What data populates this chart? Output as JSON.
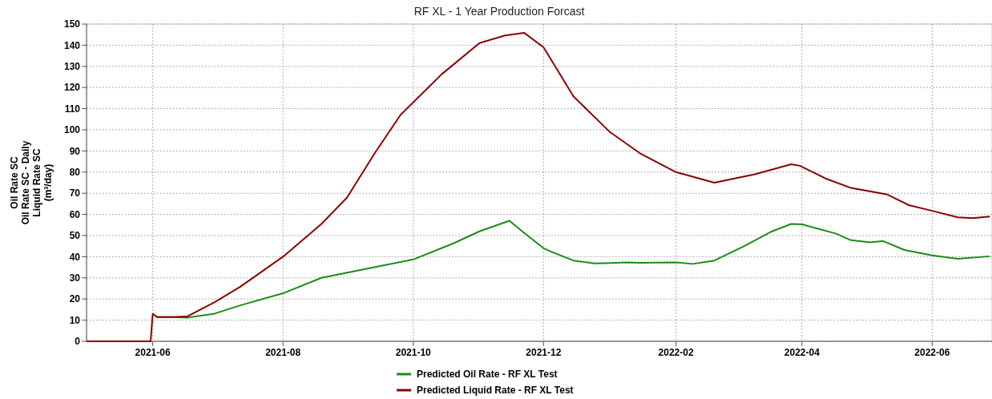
{
  "chart_data": {
    "type": "line",
    "title": "RF XL - 1 Year Production Forcast",
    "ylabel": "Oil Rate SC\nOil Rate SC - Daily\nLiquid Rate SC\n(m³/day)",
    "xlim": [
      "2021-05-01",
      "2022-06-29"
    ],
    "xticks": [
      {
        "value": "2021-06-01",
        "label": "2021-06"
      },
      {
        "value": "2021-08-01",
        "label": "2021-08"
      },
      {
        "value": "2021-10-01",
        "label": "2021-10"
      },
      {
        "value": "2021-12-01",
        "label": "2021-12"
      },
      {
        "value": "2022-02-01",
        "label": "2022-02"
      },
      {
        "value": "2022-04-01",
        "label": "2022-04"
      },
      {
        "value": "2022-06-01",
        "label": "2022-06"
      }
    ],
    "ylim": [
      0,
      150
    ],
    "yticks": [
      0,
      10,
      20,
      30,
      40,
      50,
      60,
      70,
      80,
      90,
      100,
      110,
      120,
      130,
      140,
      150
    ],
    "grid": true,
    "legend": "bottom",
    "marker": "none",
    "line_style": "solid",
    "series": [
      {
        "name": "Predicted Oil Rate - RF XL Test",
        "color": "#1a8c1a",
        "x": [
          "2021-06-03",
          "2021-06-10",
          "2021-06-17",
          "2021-06-30",
          "2021-07-12",
          "2021-08-01",
          "2021-08-19",
          "2021-09-10",
          "2021-10-01",
          "2021-10-20",
          "2021-11-01",
          "2021-11-15",
          "2021-11-21",
          "2021-12-01",
          "2021-12-05",
          "2021-12-15",
          "2021-12-25",
          "2022-01-09",
          "2022-01-15",
          "2022-02-01",
          "2022-02-09",
          "2022-02-19",
          "2022-03-05",
          "2022-03-18",
          "2022-03-27",
          "2022-04-01",
          "2022-04-17",
          "2022-04-24",
          "2022-05-03",
          "2022-05-09",
          "2022-05-19",
          "2022-06-01",
          "2022-06-13",
          "2022-06-28"
        ],
        "values": [
          11.5,
          11.5,
          11.2,
          13.1,
          17,
          22.7,
          30,
          34.5,
          38.7,
          46.4,
          52,
          57,
          52,
          44,
          42.2,
          38.2,
          36.8,
          37.3,
          37.1,
          37.3,
          36.6,
          38.2,
          45,
          52,
          55.5,
          55.3,
          50.9,
          47.8,
          46.8,
          47.4,
          43.2,
          40.6,
          39,
          40.2
        ]
      },
      {
        "name": "Predicted Liquid Rate - RF XL Test",
        "color": "#8b0000",
        "x": [
          "2021-05-01",
          "2021-05-31",
          "2021-06-01",
          "2021-06-03",
          "2021-06-10",
          "2021-06-17",
          "2021-06-30",
          "2021-07-12",
          "2021-08-01",
          "2021-08-19",
          "2021-08-31",
          "2021-09-13",
          "2021-09-25",
          "2021-10-01",
          "2021-10-14",
          "2021-11-01",
          "2021-11-13",
          "2021-11-22",
          "2021-12-01",
          "2021-12-15",
          "2022-01-01",
          "2022-01-15",
          "2022-02-01",
          "2022-02-19",
          "2022-03-10",
          "2022-03-27",
          "2022-03-31",
          "2022-04-12",
          "2022-04-24",
          "2022-05-09",
          "2022-05-11",
          "2022-05-21",
          "2022-06-01",
          "2022-06-13",
          "2022-06-20",
          "2022-06-28"
        ],
        "values": [
          0,
          0,
          13,
          11.5,
          11.5,
          11.7,
          18.5,
          25.8,
          40,
          55.5,
          68,
          89,
          107,
          113,
          126,
          141,
          144.6,
          145.8,
          139,
          115.8,
          99,
          89,
          80,
          75,
          79,
          83.7,
          83,
          77,
          72.5,
          69.8,
          69.4,
          64.4,
          61.7,
          58.6,
          58.2,
          59
        ]
      }
    ]
  }
}
